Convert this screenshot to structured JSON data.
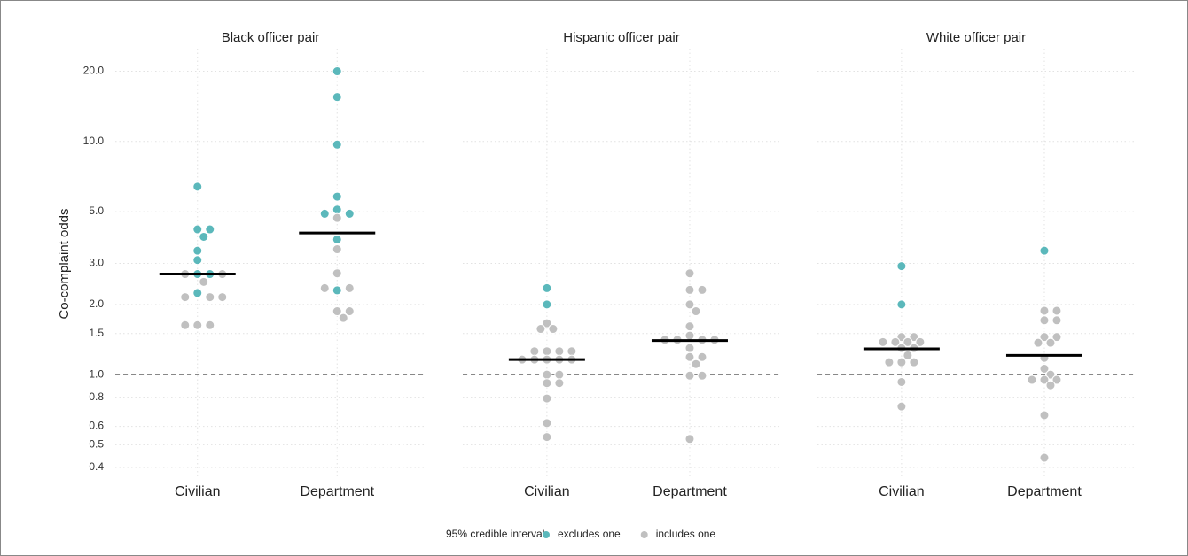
{
  "chart_data": {
    "type": "beeswarm",
    "ylabel": "Co-complaint odds",
    "log_y": true,
    "ylim": [
      0.36,
      25
    ],
    "yticks": [
      0.4,
      0.5,
      0.6,
      0.8,
      {
        "value": 1,
        "label": "1.0"
      },
      1.5,
      {
        "value": 2,
        "label": "2.0"
      },
      {
        "value": 3,
        "label": "3.0"
      },
      {
        "value": 5,
        "label": "5.0"
      },
      {
        "value": 10,
        "label": "10.0"
      },
      {
        "value": 20,
        "label": "20.0"
      }
    ],
    "grid": true,
    "reference_line": 1,
    "legend_title": "95% credible interval",
    "legend_position": "bottom",
    "series": [
      {
        "name": "excludes one",
        "color": "#5bb8bb"
      },
      {
        "name": "includes one",
        "color": "#c0c0c0"
      }
    ],
    "panels": [
      {
        "title": "Black officer pair",
        "categories": [
          "Civilian",
          "Department"
        ],
        "medians": [
          2.7,
          4.05
        ],
        "values": [
          [
            [
              6.4,
              4.2,
              4.2,
              3.9,
              3.4,
              3.1,
              2.7,
              2.7,
              2.24
            ],
            [
              2.7,
              2.7,
              2.5,
              2.15,
              2.15,
              2.15,
              1.63,
              1.63,
              1.63
            ]
          ],
          [
            [
              20,
              15.5,
              9.7,
              5.8,
              5.1,
              4.9,
              4.9,
              3.8,
              2.3
            ],
            [
              4.7,
              3.45,
              2.72,
              2.35,
              2.35,
              1.87,
              1.87,
              1.75
            ]
          ]
        ]
      },
      {
        "title": "Hispanic officer pair",
        "categories": [
          "Civilian",
          "Department"
        ],
        "medians": [
          1.16,
          1.4
        ],
        "values": [
          [
            [
              2.35,
              2.0
            ],
            [
              1.66,
              1.57,
              1.57,
              1.26,
              1.26,
              1.26,
              1.26,
              1.16,
              1.16,
              1.16,
              1.16,
              1.16,
              1.0,
              1.0,
              0.92,
              0.92,
              0.79,
              0.62,
              0.54
            ]
          ],
          [
            [],
            [
              2.72,
              2.31,
              2.31,
              2.0,
              1.87,
              1.61,
              1.47,
              1.41,
              1.41,
              1.41,
              1.41,
              1.3,
              1.19,
              1.19,
              1.11,
              0.99,
              0.99,
              0.53
            ]
          ]
        ]
      },
      {
        "title": "White officer pair",
        "categories": [
          "Civilian",
          "Department"
        ],
        "medians": [
          1.29,
          1.21
        ],
        "values": [
          [
            [
              2.92,
              2.0
            ],
            [
              1.45,
              1.45,
              1.38,
              1.38,
              1.38,
              1.38,
              1.3,
              1.3,
              1.21,
              1.13,
              1.13,
              1.13,
              0.93,
              0.73
            ]
          ],
          [
            [
              3.4
            ],
            [
              1.88,
              1.88,
              1.71,
              1.71,
              1.45,
              1.45,
              1.37,
              1.37,
              1.18,
              1.06,
              1.0,
              0.95,
              0.95,
              0.95,
              0.9,
              0.67,
              0.44
            ]
          ]
        ]
      }
    ]
  }
}
